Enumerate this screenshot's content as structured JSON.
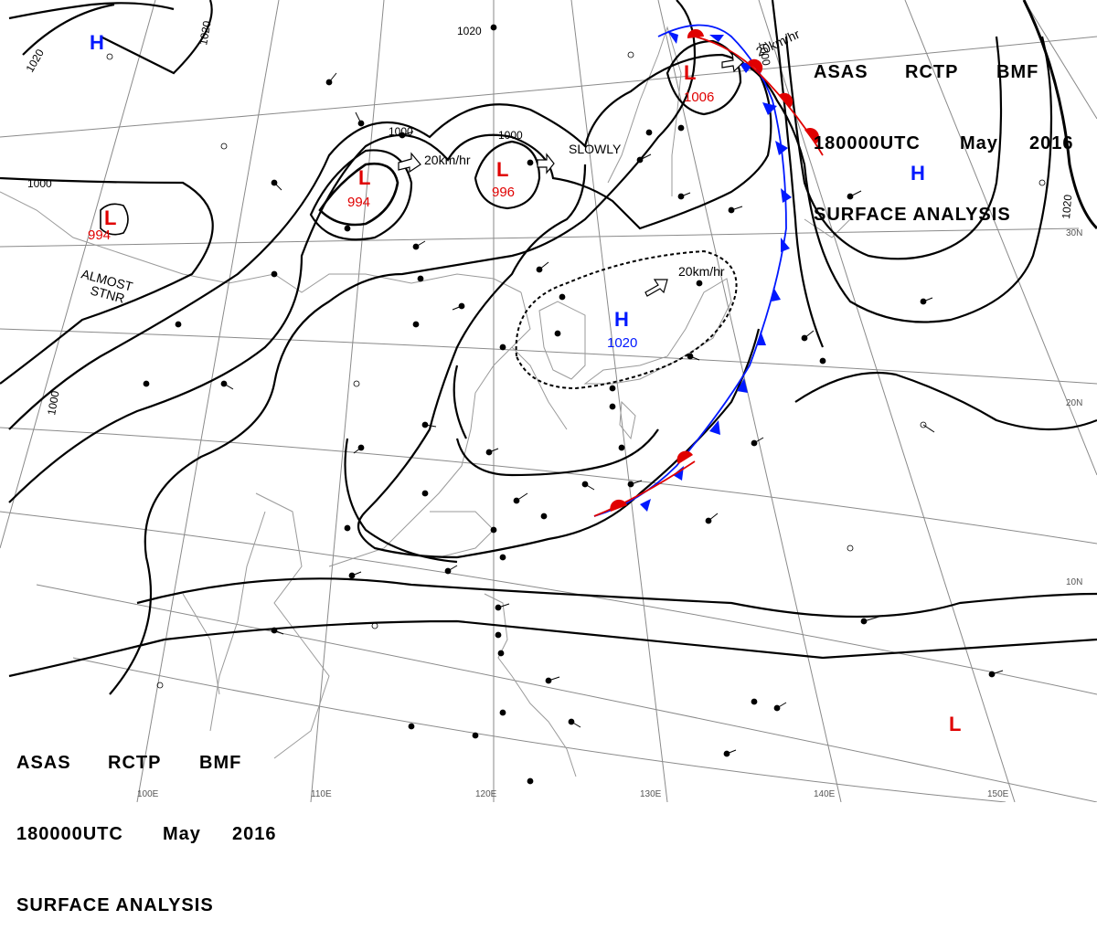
{
  "header": {
    "line1": [
      "ASAS",
      "RCTP",
      "BMF"
    ],
    "line2": [
      "180000UTC",
      "May",
      "2016"
    ],
    "line3": "SURFACE ANALYSIS"
  },
  "colors": {
    "low": "#e00000",
    "high": "#0018ff",
    "isobar": "#000000",
    "grid": "#888888",
    "land": "#999999"
  },
  "pressure_centers": [
    {
      "type": "L",
      "value": "994",
      "name": "low-center-994-west"
    },
    {
      "type": "L",
      "value": "994",
      "name": "low-center-994-mongolia"
    },
    {
      "type": "L",
      "value": "996",
      "name": "low-center-996"
    },
    {
      "type": "L",
      "value": "1006",
      "name": "low-center-1006"
    },
    {
      "type": "H",
      "value": "1020",
      "name": "high-center-1020"
    },
    {
      "type": "H",
      "value": "",
      "name": "high-center-northwest"
    },
    {
      "type": "H",
      "value": "",
      "name": "high-center-pacific"
    },
    {
      "type": "L",
      "value": "",
      "name": "low-center-southeast"
    }
  ],
  "isobar_labels": [
    "1020",
    "1020",
    "1000",
    "1000",
    "1000",
    "1000",
    "1000",
    "1020",
    "1020"
  ],
  "motion_labels": [
    "20km/hr",
    "SLOWLY",
    "20km/hr",
    "20km/hr"
  ],
  "notes": [
    "ALMOST",
    "STNR"
  ],
  "lat_labels": [
    "30N",
    "20N",
    "10N"
  ],
  "lon_labels": [
    "100E",
    "110E",
    "120E",
    "130E",
    "140E",
    "150E"
  ]
}
